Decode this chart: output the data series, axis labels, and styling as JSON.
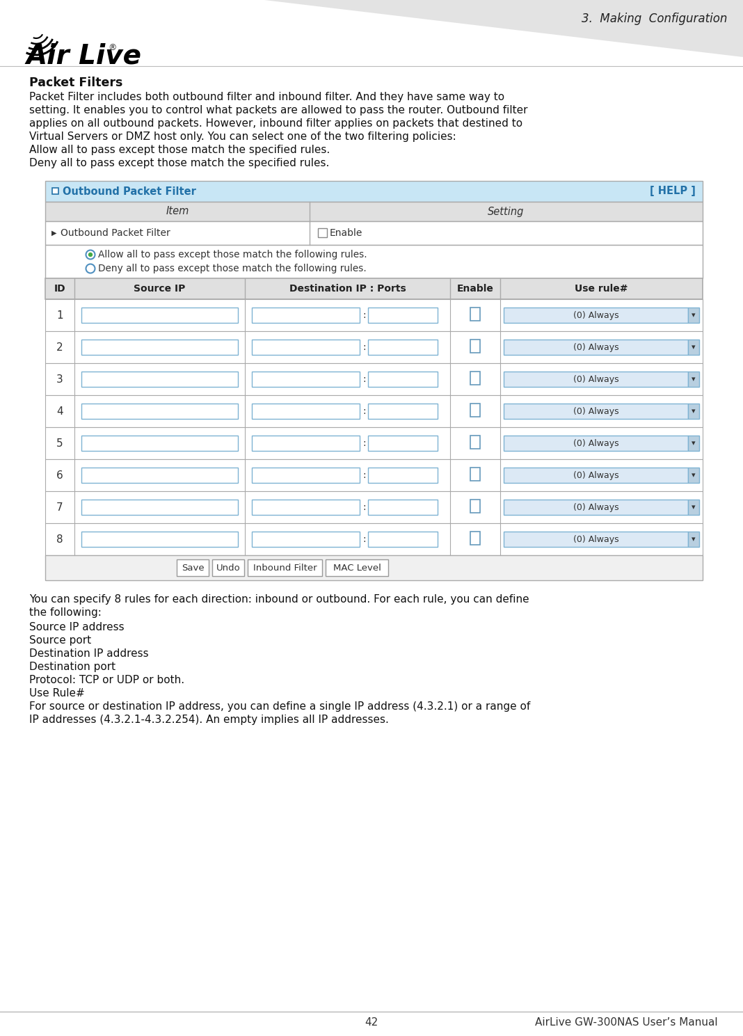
{
  "title_right": "3.  Making  Configuration",
  "page_bg": "#ffffff",
  "section_title": "Packet Filters",
  "body_text_1_lines": [
    "Packet Filter includes both outbound filter and inbound filter. And they have same way to",
    "setting. It enables you to control what packets are allowed to pass the router. Outbound filter",
    "applies on all outbound packets. However, inbound filter applies on packets that destined to",
    "Virtual Servers or DMZ host only. You can select one of the two filtering policies:"
  ],
  "bullet1": "Allow all to pass except those match the specified rules.",
  "bullet2": "Deny all to pass except those match the specified rules.",
  "table_header_bg": "#c8e6f5",
  "table_header_text_color": "#2271a8",
  "table_border_color": "#aaaaaa",
  "table_header_row_bg": "#e0e0e0",
  "outbound_label": "Outbound Packet Filter",
  "help_label": "[ HELP ]",
  "col_item": "Item",
  "col_setting": "Setting",
  "row_label": "Outbound Packet Filter",
  "enable_label": "Enable",
  "radio1": "Allow all to pass except those match the following rules.",
  "radio2": "Deny all to pass except those match the following rules.",
  "col_id": "ID",
  "col_source_ip": "Source IP",
  "col_dest_ip": "Destination IP : Ports",
  "col_enable": "Enable",
  "col_use_rule": "Use rule#",
  "always_text": "(0) Always",
  "btn_save": "Save",
  "btn_undo": "Undo",
  "btn_inbound": "Inbound Filter",
  "btn_mac": "MAC Level",
  "body_text_2_lines": [
    "You can specify 8 rules for each direction: inbound or outbound. For each rule, you can define",
    "the following:"
  ],
  "list_items": [
    "Source IP address",
    "Source port",
    "Destination IP address",
    "Destination port",
    "Protocol: TCP or UDP or both.",
    "Use Rule#",
    "For source or destination IP address, you can define a single IP address (4.3.2.1) or a range of",
    "IP addresses (4.3.2.1-4.3.2.254). An empty implies all IP addresses."
  ],
  "footer_page": "42",
  "footer_text": "AirLive GW-300NAS User’s Manual",
  "input_border": "#7fb3d3",
  "checkbox_color": "#6699bb",
  "dropdown_bg": "#dce9f5",
  "dropdown_arrow_bg": "#b8cfe0"
}
